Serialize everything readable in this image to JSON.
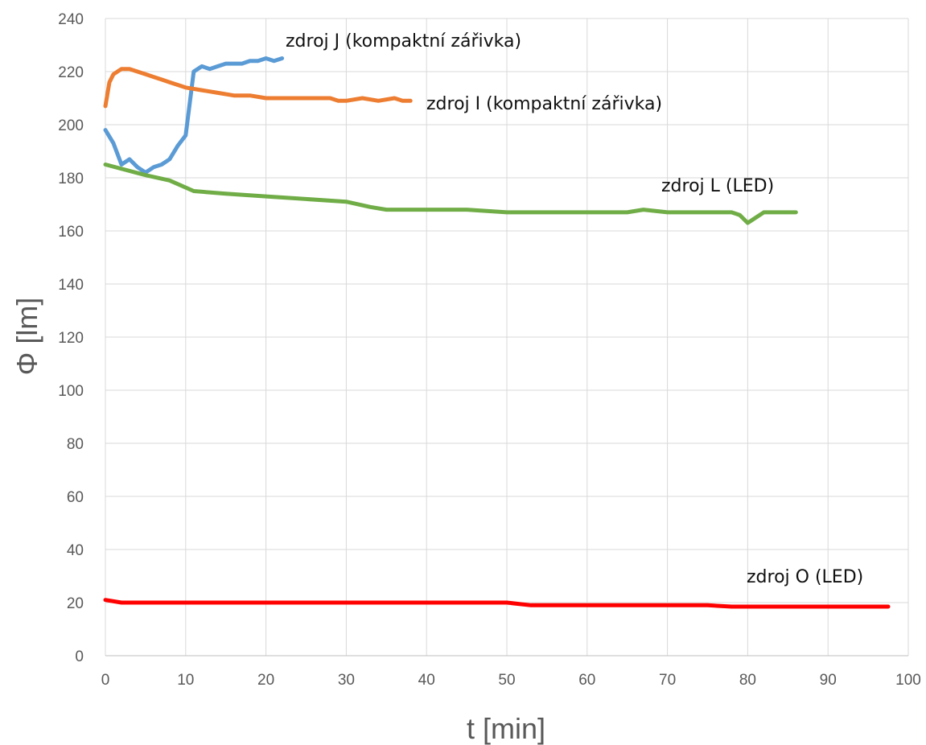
{
  "chart_data": {
    "type": "line",
    "title": "",
    "xlabel": "t [min]",
    "ylabel": "Φ [lm]",
    "xlim": [
      0,
      100
    ],
    "ylim": [
      0,
      240
    ],
    "x_ticks": [
      0,
      10,
      20,
      30,
      40,
      50,
      60,
      70,
      80,
      90,
      100
    ],
    "y_ticks": [
      0,
      20,
      40,
      60,
      80,
      100,
      120,
      140,
      160,
      180,
      200,
      220,
      240
    ],
    "grid": true,
    "legend": "none (inline series labels)",
    "series": [
      {
        "name": "zdroj J (kompaktní zářivka)",
        "color": "#5b9bd5",
        "x": [
          0,
          1,
          2,
          3,
          4,
          5,
          6,
          7,
          8,
          9,
          10,
          11,
          12,
          13,
          14,
          15,
          16,
          17,
          18,
          19,
          20,
          21,
          22
        ],
        "y": [
          198,
          193,
          185,
          187,
          184,
          182,
          184,
          185,
          187,
          192,
          196,
          220,
          222,
          221,
          222,
          223,
          223,
          223,
          224,
          224,
          225,
          224,
          225
        ]
      },
      {
        "name": "zdroj I (kompaktní zářivka)",
        "color": "#ed7d31",
        "x": [
          0,
          0.5,
          1,
          2,
          3,
          4,
          5,
          6,
          7,
          8,
          9,
          10,
          12,
          14,
          16,
          18,
          20,
          22,
          24,
          26,
          28,
          29,
          30,
          32,
          34,
          36,
          37,
          38
        ],
        "y": [
          207,
          216,
          219,
          221,
          221,
          220,
          219,
          218,
          217,
          216,
          215,
          214,
          213,
          212,
          211,
          211,
          210,
          210,
          210,
          210,
          210,
          209,
          209,
          210,
          209,
          210,
          209,
          209
        ]
      },
      {
        "name": "zdroj L (LED)",
        "color": "#70ad47",
        "x": [
          0,
          5,
          8,
          11,
          15,
          20,
          25,
          30,
          33,
          35,
          40,
          45,
          50,
          55,
          60,
          65,
          67,
          70,
          75,
          78,
          79,
          80,
          81,
          82,
          86
        ],
        "y": [
          185,
          181,
          179,
          175,
          174,
          173,
          172,
          171,
          169,
          168,
          168,
          168,
          167,
          167,
          167,
          167,
          168,
          167,
          167,
          167,
          166,
          163,
          165,
          167,
          167
        ]
      },
      {
        "name": "zdroj O (LED)",
        "color": "#ff0000",
        "x": [
          0,
          2,
          10,
          20,
          30,
          40,
          50,
          53,
          60,
          70,
          75,
          78,
          85,
          90,
          97.5
        ],
        "y": [
          21,
          20,
          20,
          20,
          20,
          20,
          20,
          19,
          19,
          19,
          19,
          18.5,
          18.5,
          18.5,
          18.5
        ]
      }
    ]
  }
}
